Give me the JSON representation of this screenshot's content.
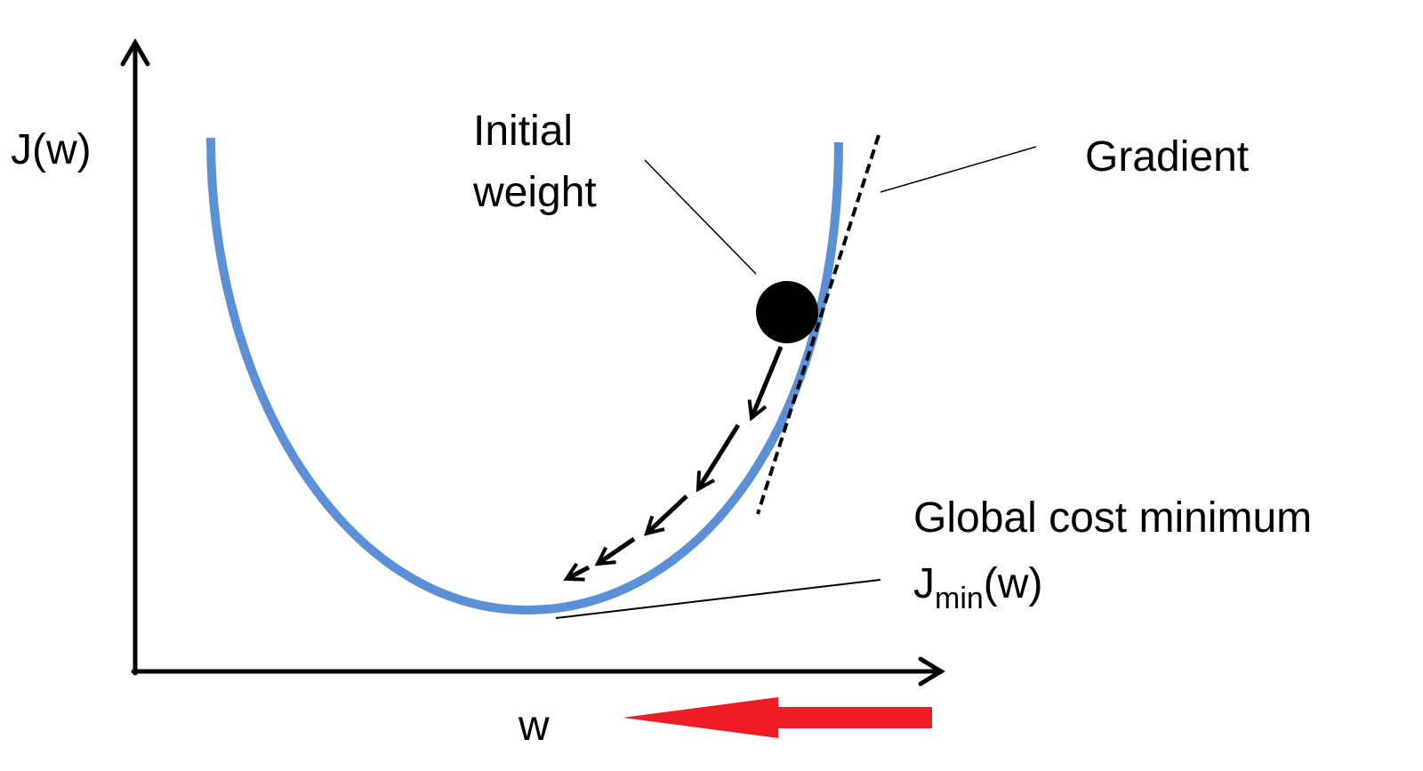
{
  "axes": {
    "y_label": "J(w)",
    "x_label": "w"
  },
  "annotations": {
    "initial_weight": [
      "Initial",
      "weight"
    ],
    "gradient": "Gradient",
    "global_minimum": {
      "title": "Global cost minimum",
      "symbol": "J",
      "subscript": "min",
      "argument": "(w)"
    }
  }
}
